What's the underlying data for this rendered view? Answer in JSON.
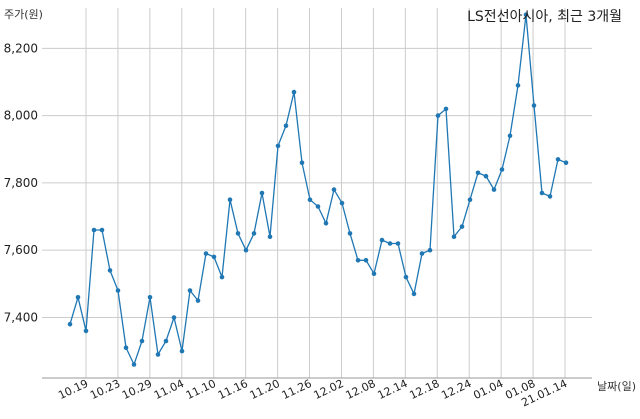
{
  "chart_data": {
    "type": "line",
    "title": "LS전선아시아, 최근 3개월",
    "ylabel": "주가(원)",
    "xlabel": "날짜(일)",
    "ylim": [
      7220,
      8320
    ],
    "yticks": [
      7400,
      7600,
      7800,
      8000,
      8200
    ],
    "ytick_labels": [
      "7,400",
      "7,600",
      "7,800",
      "8,000",
      "8,200"
    ],
    "xtick_labels": [
      "10.19",
      "10.23",
      "10.29",
      "11.04",
      "11.10",
      "11.16",
      "11.20",
      "11.26",
      "12.02",
      "12.08",
      "12.14",
      "12.18",
      "12.24",
      "01.04",
      "01.08",
      "21.01.14"
    ],
    "grid": true,
    "line_color": "#1f77b4",
    "series": [
      {
        "values": [
          7380,
          7460,
          7360,
          7660,
          7660,
          7540,
          7480,
          7310,
          7260,
          7330,
          7460,
          7290,
          7330,
          7400,
          7300,
          7480,
          7450,
          7590,
          7580,
          7520,
          7750,
          7650,
          7600,
          7650,
          7770,
          7640,
          7910,
          7970,
          8070,
          7860,
          7750,
          7730,
          7680,
          7780,
          7740,
          7650,
          7570,
          7570,
          7530,
          7630,
          7620,
          7620,
          7520,
          7470,
          7590,
          7600,
          8000,
          8020,
          7640,
          7670,
          7750,
          7830,
          7820,
          7780,
          7840,
          7940,
          8090,
          8300,
          8030,
          7770,
          7760,
          7870,
          7860
        ]
      }
    ]
  }
}
